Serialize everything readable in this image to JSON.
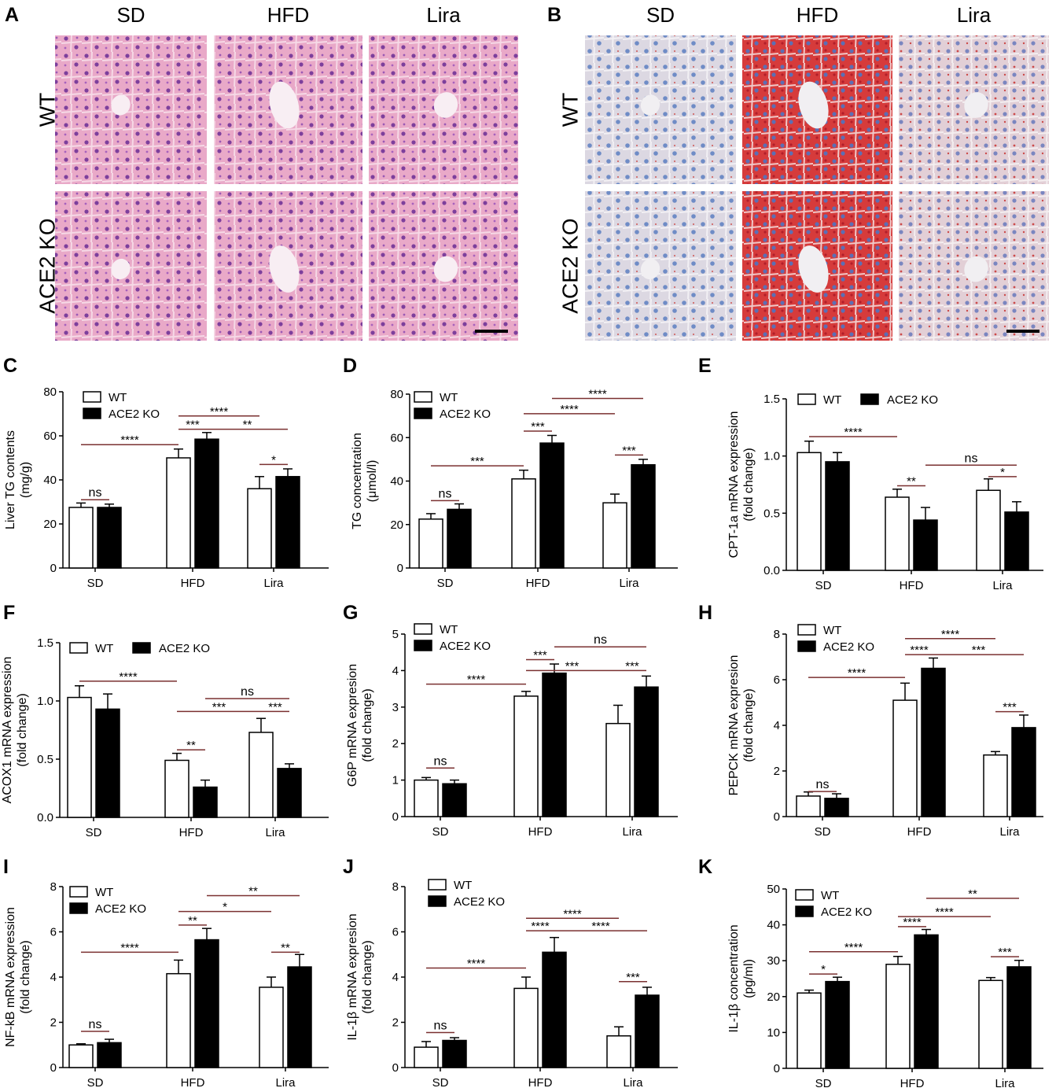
{
  "micrographs": {
    "columns": [
      "SD",
      "HFD",
      "Lira"
    ],
    "rows": [
      "WT",
      "ACE2 KO"
    ],
    "panels": [
      {
        "label": "A",
        "stain": "he"
      },
      {
        "label": "B",
        "stain": "oilred"
      }
    ]
  },
  "colors": {
    "wt_fill": "#ffffff",
    "ko_fill": "#000000",
    "he_bg": "#e8a8c6",
    "he_nuclei": "#7a3f9a",
    "oilred_bg": "#d9d4e0",
    "oilred_lipid": "#d23a3a",
    "oilred_nuclei": "#5f7ec0"
  },
  "chart_data": [
    {
      "label": "C",
      "type": "bar",
      "ylabel": [
        "Liver TG contents",
        "(mg/g)"
      ],
      "categories": [
        "SD",
        "HFD",
        "Lira"
      ],
      "ylim": [
        0,
        80
      ],
      "yticks": [
        0,
        20,
        40,
        60,
        80
      ],
      "series": [
        {
          "name": "WT",
          "values": [
            27.5,
            50,
            36
          ],
          "errors": [
            2,
            4,
            5.5
          ]
        },
        {
          "name": "ACE2 KO",
          "values": [
            27.5,
            58.5,
            41.5
          ],
          "errors": [
            1.5,
            3,
            3.5
          ]
        }
      ],
      "legend": "top-left",
      "significance": [
        {
          "a": [
            0,
            0
          ],
          "b": [
            0,
            1
          ],
          "text": "ns",
          "y": 31
        },
        {
          "a": [
            0,
            0
          ],
          "b": [
            1,
            0
          ],
          "text": "****",
          "y": 56
        },
        {
          "a": [
            1,
            0
          ],
          "b": [
            1,
            1
          ],
          "text": "***",
          "y": 63
        },
        {
          "a": [
            1,
            0
          ],
          "b": [
            2,
            0
          ],
          "text": "****",
          "y": 69
        },
        {
          "a": [
            1,
            1
          ],
          "b": [
            2,
            1
          ],
          "text": "**",
          "y": 63
        },
        {
          "a": [
            2,
            0
          ],
          "b": [
            2,
            1
          ],
          "text": "*",
          "y": 47
        }
      ]
    },
    {
      "label": "D",
      "type": "bar",
      "ylabel": [
        "TG concentration",
        "(μmol/l)"
      ],
      "categories": [
        "SD",
        "HFD",
        "Lira"
      ],
      "ylim": [
        0,
        80
      ],
      "yticks": [
        0,
        20,
        40,
        60,
        80
      ],
      "series": [
        {
          "name": "WT",
          "values": [
            22.5,
            41,
            30
          ],
          "errors": [
            2.5,
            4,
            4
          ]
        },
        {
          "name": "ACE2 KO",
          "values": [
            27,
            57.5,
            47.5
          ],
          "errors": [
            2.5,
            3.5,
            2.5
          ]
        }
      ],
      "legend": "top-left",
      "significance": [
        {
          "a": [
            0,
            0
          ],
          "b": [
            0,
            1
          ],
          "text": "ns",
          "y": 31
        },
        {
          "a": [
            0,
            0
          ],
          "b": [
            1,
            0
          ],
          "text": "***",
          "y": 47
        },
        {
          "a": [
            1,
            0
          ],
          "b": [
            1,
            1
          ],
          "text": "***",
          "y": 63
        },
        {
          "a": [
            1,
            0
          ],
          "b": [
            2,
            0
          ],
          "text": "****",
          "y": 71
        },
        {
          "a": [
            1,
            1
          ],
          "b": [
            2,
            1
          ],
          "text": "****",
          "y": 78
        },
        {
          "a": [
            2,
            0
          ],
          "b": [
            2,
            1
          ],
          "text": "***",
          "y": 52
        }
      ]
    },
    {
      "label": "E",
      "type": "bar",
      "ylabel": [
        "CPT-1a mRNA expression",
        "(fold change)"
      ],
      "categories": [
        "SD",
        "HFD",
        "Lira"
      ],
      "ylim": [
        0,
        1.5
      ],
      "yticks": [
        "0.0",
        "0.5",
        "1.0",
        "1.5"
      ],
      "series": [
        {
          "name": "WT",
          "values": [
            1.03,
            0.64,
            0.7
          ],
          "errors": [
            0.1,
            0.07,
            0.1
          ]
        },
        {
          "name": "ACE2 KO",
          "values": [
            0.95,
            0.44,
            0.51
          ],
          "errors": [
            0.08,
            0.11,
            0.09
          ]
        }
      ],
      "legend": "top",
      "significance": [
        {
          "a": [
            0,
            0
          ],
          "b": [
            1,
            0
          ],
          "text": "****",
          "y": 1.17
        },
        {
          "a": [
            1,
            0
          ],
          "b": [
            1,
            1
          ],
          "text": "**",
          "y": 0.74
        },
        {
          "a": [
            1,
            1
          ],
          "b": [
            2,
            1
          ],
          "text": "ns",
          "y": 0.92
        },
        {
          "a": [
            2,
            0
          ],
          "b": [
            2,
            1
          ],
          "text": "*",
          "y": 0.82
        }
      ]
    },
    {
      "label": "F",
      "type": "bar",
      "ylabel": [
        "ACOX1 mRNA expression",
        "(fold change)"
      ],
      "categories": [
        "SD",
        "HFD",
        "Lira"
      ],
      "ylim": [
        0,
        1.5
      ],
      "yticks": [
        "0.0",
        "0.5",
        "1.0",
        "1.5"
      ],
      "series": [
        {
          "name": "WT",
          "values": [
            1.03,
            0.49,
            0.73
          ],
          "errors": [
            0.1,
            0.06,
            0.12
          ]
        },
        {
          "name": "ACE2 KO",
          "values": [
            0.93,
            0.26,
            0.42
          ],
          "errors": [
            0.13,
            0.06,
            0.04
          ]
        }
      ],
      "legend": "top",
      "significance": [
        {
          "a": [
            0,
            0
          ],
          "b": [
            1,
            0
          ],
          "text": "****",
          "y": 1.17
        },
        {
          "a": [
            1,
            0
          ],
          "b": [
            1,
            1
          ],
          "text": "**",
          "y": 0.58
        },
        {
          "a": [
            1,
            0
          ],
          "b": [
            2,
            0
          ],
          "text": "***",
          "y": 0.91
        },
        {
          "a": [
            1,
            1
          ],
          "b": [
            2,
            1
          ],
          "text": "ns",
          "y": 1.02
        },
        {
          "a": [
            2,
            0
          ],
          "b": [
            2,
            1
          ],
          "text": "***",
          "y": 0.91
        }
      ]
    },
    {
      "label": "G",
      "type": "bar",
      "ylabel": [
        "G6P mRNA expresion",
        "(fold change)"
      ],
      "categories": [
        "SD",
        "HFD",
        "Lira"
      ],
      "ylim": [
        0,
        5
      ],
      "yticks": [
        0,
        1,
        2,
        3,
        4,
        5
      ],
      "series": [
        {
          "name": "WT",
          "values": [
            1.0,
            3.3,
            2.55
          ],
          "errors": [
            0.07,
            0.13,
            0.5
          ]
        },
        {
          "name": "ACE2 KO",
          "values": [
            0.9,
            3.93,
            3.55
          ],
          "errors": [
            0.1,
            0.25,
            0.3
          ]
        }
      ],
      "legend": "top-left",
      "significance": [
        {
          "a": [
            0,
            0
          ],
          "b": [
            0,
            1
          ],
          "text": "ns",
          "y": 1.33
        },
        {
          "a": [
            0,
            0
          ],
          "b": [
            1,
            0
          ],
          "text": "****",
          "y": 3.63
        },
        {
          "a": [
            1,
            0
          ],
          "b": [
            1,
            1
          ],
          "text": "***",
          "y": 4.3
        },
        {
          "a": [
            1,
            0
          ],
          "b": [
            2,
            0
          ],
          "text": "***",
          "y": 4.0
        },
        {
          "a": [
            1,
            1
          ],
          "b": [
            2,
            1
          ],
          "text": "ns",
          "y": 4.65
        },
        {
          "a": [
            2,
            0
          ],
          "b": [
            2,
            1
          ],
          "text": "***",
          "y": 4.0
        }
      ]
    },
    {
      "label": "H",
      "type": "bar",
      "ylabel": [
        "PEPCK mRNA expresion",
        "(fold change)"
      ],
      "categories": [
        "SD",
        "HFD",
        "Lira"
      ],
      "ylim": [
        0,
        8
      ],
      "yticks": [
        0,
        2,
        4,
        6,
        8
      ],
      "series": [
        {
          "name": "WT",
          "values": [
            0.9,
            5.1,
            2.7
          ],
          "errors": [
            0.18,
            0.75,
            0.15
          ]
        },
        {
          "name": "ACE2 KO",
          "values": [
            0.8,
            6.5,
            3.9
          ],
          "errors": [
            0.2,
            0.45,
            0.55
          ]
        }
      ],
      "legend": "top-left",
      "significance": [
        {
          "a": [
            0,
            0
          ],
          "b": [
            0,
            1
          ],
          "text": "ns",
          "y": 1.1
        },
        {
          "a": [
            0,
            0
          ],
          "b": [
            1,
            0
          ],
          "text": "****",
          "y": 6.1
        },
        {
          "a": [
            1,
            0
          ],
          "b": [
            1,
            1
          ],
          "text": "****",
          "y": 7.1
        },
        {
          "a": [
            1,
            0
          ],
          "b": [
            2,
            0
          ],
          "text": "****",
          "y": 7.8
        },
        {
          "a": [
            1,
            1
          ],
          "b": [
            2,
            1
          ],
          "text": "***",
          "y": 7.1
        },
        {
          "a": [
            2,
            0
          ],
          "b": [
            2,
            1
          ],
          "text": "***",
          "y": 4.6
        }
      ]
    },
    {
      "label": "I",
      "type": "bar",
      "ylabel": [
        "NF-kB mRNA expression",
        "(fold change)"
      ],
      "categories": [
        "SD",
        "HFD",
        "Lira"
      ],
      "ylim": [
        0,
        8
      ],
      "yticks": [
        0,
        2,
        4,
        6,
        8
      ],
      "series": [
        {
          "name": "WT",
          "values": [
            1.0,
            4.15,
            3.55
          ],
          "errors": [
            0.05,
            0.6,
            0.45
          ]
        },
        {
          "name": "ACE2 KO",
          "values": [
            1.1,
            5.65,
            4.45
          ],
          "errors": [
            0.15,
            0.5,
            0.55
          ]
        }
      ],
      "legend": "top-left",
      "significance": [
        {
          "a": [
            0,
            0
          ],
          "b": [
            0,
            1
          ],
          "text": "ns",
          "y": 1.6
        },
        {
          "a": [
            0,
            0
          ],
          "b": [
            1,
            0
          ],
          "text": "****",
          "y": 5.1
        },
        {
          "a": [
            1,
            0
          ],
          "b": [
            1,
            1
          ],
          "text": "**",
          "y": 6.3
        },
        {
          "a": [
            1,
            0
          ],
          "b": [
            2,
            0
          ],
          "text": "*",
          "y": 6.9
        },
        {
          "a": [
            1,
            1
          ],
          "b": [
            2,
            1
          ],
          "text": "**",
          "y": 7.6
        },
        {
          "a": [
            2,
            0
          ],
          "b": [
            2,
            1
          ],
          "text": "**",
          "y": 5.1
        }
      ]
    },
    {
      "label": "J",
      "type": "bar",
      "ylabel": [
        "IL-1β mRNA expresion",
        "(fold change)"
      ],
      "categories": [
        "SD",
        "HFD",
        "Lira"
      ],
      "ylim": [
        0,
        8
      ],
      "yticks": [
        0,
        2,
        4,
        6,
        8
      ],
      "series": [
        {
          "name": "WT",
          "values": [
            0.9,
            3.5,
            1.4
          ],
          "errors": [
            0.25,
            0.5,
            0.4
          ]
        },
        {
          "name": "ACE2 KO",
          "values": [
            1.2,
            5.1,
            3.2
          ],
          "errors": [
            0.12,
            0.65,
            0.35
          ]
        }
      ],
      "legend": "top-left",
      "significance": [
        {
          "a": [
            0,
            0
          ],
          "b": [
            0,
            1
          ],
          "text": "ns",
          "y": 1.55
        },
        {
          "a": [
            0,
            0
          ],
          "b": [
            1,
            0
          ],
          "text": "****",
          "y": 4.4
        },
        {
          "a": [
            1,
            0
          ],
          "b": [
            1,
            1
          ],
          "text": "****",
          "y": 6.05
        },
        {
          "a": [
            1,
            0
          ],
          "b": [
            2,
            0
          ],
          "text": "****",
          "y": 6.6
        },
        {
          "a": [
            1,
            1
          ],
          "b": [
            2,
            1
          ],
          "text": "****",
          "y": 6.05
        },
        {
          "a": [
            2,
            0
          ],
          "b": [
            2,
            1
          ],
          "text": "***",
          "y": 3.8
        }
      ]
    },
    {
      "label": "K",
      "type": "bar",
      "ylabel": [
        "IL-1β concentration",
        "(pg/ml)"
      ],
      "categories": [
        "SD",
        "HFD",
        "Lira"
      ],
      "ylim": [
        0,
        50
      ],
      "yticks": [
        0,
        10,
        20,
        30,
        40,
        50
      ],
      "series": [
        {
          "name": "WT",
          "values": [
            21,
            29,
            24.5
          ],
          "errors": [
            0.8,
            2.2,
            0.8
          ]
        },
        {
          "name": "ACE2 KO",
          "values": [
            24.2,
            37.2,
            28.3
          ],
          "errors": [
            1.2,
            1.5,
            1.8
          ]
        }
      ],
      "legend": "top-left",
      "significance": [
        {
          "a": [
            0,
            0
          ],
          "b": [
            0,
            1
          ],
          "text": "*",
          "y": 26.3
        },
        {
          "a": [
            0,
            0
          ],
          "b": [
            1,
            0
          ],
          "text": "****",
          "y": 32.5
        },
        {
          "a": [
            1,
            0
          ],
          "b": [
            1,
            1
          ],
          "text": "****",
          "y": 39.5
        },
        {
          "a": [
            1,
            0
          ],
          "b": [
            2,
            0
          ],
          "text": "****",
          "y": 42.3
        },
        {
          "a": [
            1,
            1
          ],
          "b": [
            2,
            1
          ],
          "text": "**",
          "y": 47.4
        },
        {
          "a": [
            2,
            0
          ],
          "b": [
            2,
            1
          ],
          "text": "***",
          "y": 31.1
        }
      ]
    }
  ]
}
